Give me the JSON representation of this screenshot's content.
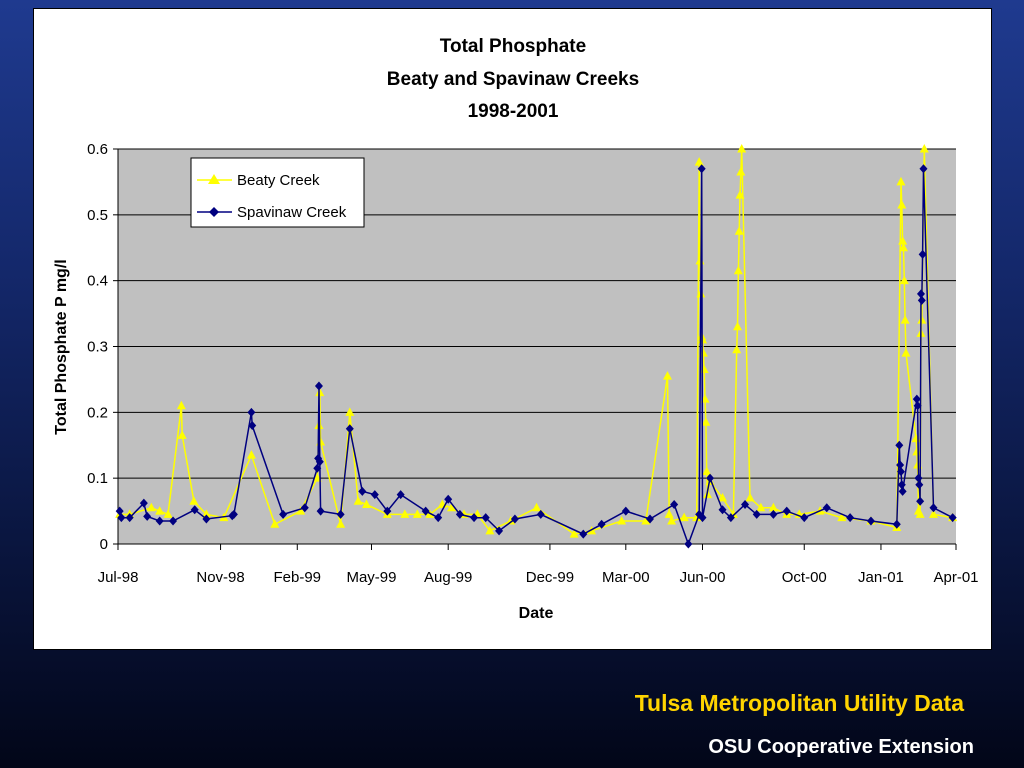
{
  "footer": {
    "primary": "Tulsa Metropolitan Utility Data",
    "secondary": "OSU Cooperative Extension"
  },
  "colors": {
    "slide_background": "#14286b",
    "plot_background": "#c0c0c0",
    "beaty": "#ffff00",
    "spavinaw": "#000080",
    "footer_primary": "#ffd400"
  },
  "chart_data": {
    "type": "line",
    "title": [
      "Total Phosphate",
      "Beaty and Spavinaw Creeks",
      "1998-2001"
    ],
    "xlabel": "Date",
    "ylabel": "Total Phosphate  P  mg/l",
    "x_axis": {
      "type": "date",
      "range": [
        "1998-07-01",
        "2001-04-01"
      ],
      "tick_labels": [
        {
          "date": "1998-07-01",
          "label": "Jul-98"
        },
        {
          "date": "1998-11-01",
          "label": "Nov-98"
        },
        {
          "date": "1999-02-01",
          "label": "Feb-99"
        },
        {
          "date": "1999-05-01",
          "label": "May-99"
        },
        {
          "date": "1999-08-01",
          "label": "Aug-99"
        },
        {
          "date": "1999-12-01",
          "label": "Dec-99"
        },
        {
          "date": "2000-03-01",
          "label": "Mar-00"
        },
        {
          "date": "2000-06-01",
          "label": "Jun-00"
        },
        {
          "date": "2000-10-01",
          "label": "Oct-00"
        },
        {
          "date": "2001-01-01",
          "label": "Jan-01"
        },
        {
          "date": "2001-04-01",
          "label": "Apr-01"
        }
      ]
    },
    "ylim": [
      0,
      0.6
    ],
    "y_ticks": [
      {
        "value": 0,
        "label": "0"
      },
      {
        "value": 0.1,
        "label": "0.1"
      },
      {
        "value": 0.2,
        "label": "0.2"
      },
      {
        "value": 0.3,
        "label": "0.3"
      },
      {
        "value": 0.4,
        "label": "0.4"
      },
      {
        "value": 0.5,
        "label": "0.5"
      },
      {
        "value": 0.6,
        "label": "0.6"
      }
    ],
    "grid": true,
    "legend_position": "top-left",
    "series": [
      {
        "name": "Beaty Creek",
        "color": "#ffff00",
        "marker": "triangle",
        "points": [
          [
            "1998-07-03",
            0.045
          ],
          [
            "1998-07-15",
            0.045
          ],
          [
            "1998-08-10",
            0.055
          ],
          [
            "1998-08-20",
            0.05
          ],
          [
            "1998-08-30",
            0.045
          ],
          [
            "1998-09-15",
            0.21
          ],
          [
            "1998-09-16",
            0.165
          ],
          [
            "1998-09-30",
            0.065
          ],
          [
            "1998-10-15",
            0.045
          ],
          [
            "1998-11-05",
            0.04
          ],
          [
            "1998-12-08",
            0.135
          ],
          [
            "1999-01-05",
            0.03
          ],
          [
            "1999-02-05",
            0.05
          ],
          [
            "1999-02-25",
            0.1
          ],
          [
            "1999-02-27",
            0.18
          ],
          [
            "1999-02-28",
            0.23
          ],
          [
            "1999-03-01",
            0.155
          ],
          [
            "1999-03-25",
            0.03
          ],
          [
            "1999-04-05",
            0.2
          ],
          [
            "1999-04-15",
            0.065
          ],
          [
            "1999-04-25",
            0.06
          ],
          [
            "1999-05-20",
            0.045
          ],
          [
            "1999-06-10",
            0.045
          ],
          [
            "1999-06-25",
            0.045
          ],
          [
            "1999-07-10",
            0.045
          ],
          [
            "1999-07-25",
            0.06
          ],
          [
            "1999-08-05",
            0.055
          ],
          [
            "1999-08-20",
            0.045
          ],
          [
            "1999-09-05",
            0.045
          ],
          [
            "1999-09-20",
            0.02
          ],
          [
            "1999-10-15",
            0.035
          ],
          [
            "1999-11-15",
            0.055
          ],
          [
            "1999-12-30",
            0.015
          ],
          [
            "2000-01-20",
            0.02
          ],
          [
            "2000-02-25",
            0.035
          ],
          [
            "2000-03-25",
            0.035
          ],
          [
            "2000-04-20",
            0.255
          ],
          [
            "2000-04-22",
            0.045
          ],
          [
            "2000-04-25",
            0.035
          ],
          [
            "2000-05-10",
            0.04
          ],
          [
            "2000-05-25",
            0.04
          ],
          [
            "2000-05-28",
            0.58
          ],
          [
            "2000-05-29",
            0.43
          ],
          [
            "2000-05-30",
            0.38
          ],
          [
            "2000-05-31",
            0.315
          ],
          [
            "2000-06-01",
            0.31
          ],
          [
            "2000-06-02",
            0.29
          ],
          [
            "2000-06-03",
            0.265
          ],
          [
            "2000-06-04",
            0.22
          ],
          [
            "2000-06-05",
            0.185
          ],
          [
            "2000-06-06",
            0.11
          ],
          [
            "2000-06-07",
            0.075
          ],
          [
            "2000-06-10",
            0.095
          ],
          [
            "2000-06-25",
            0.07
          ],
          [
            "2000-07-08",
            0.045
          ],
          [
            "2000-07-12",
            0.295
          ],
          [
            "2000-07-13",
            0.33
          ],
          [
            "2000-07-14",
            0.415
          ],
          [
            "2000-07-15",
            0.475
          ],
          [
            "2000-07-16",
            0.53
          ],
          [
            "2000-07-17",
            0.565
          ],
          [
            "2000-07-18",
            0.61
          ],
          [
            "2000-07-28",
            0.07
          ],
          [
            "2000-08-10",
            0.055
          ],
          [
            "2000-08-25",
            0.055
          ],
          [
            "2000-09-10",
            0.045
          ],
          [
            "2000-09-25",
            0.045
          ],
          [
            "2000-10-20",
            0.05
          ],
          [
            "2000-11-15",
            0.04
          ],
          [
            "2000-12-20",
            0.035
          ],
          [
            "2001-01-20",
            0.025
          ],
          [
            "2001-01-25",
            0.55
          ],
          [
            "2001-01-26",
            0.515
          ],
          [
            "2001-01-27",
            0.46
          ],
          [
            "2001-01-28",
            0.45
          ],
          [
            "2001-01-29",
            0.4
          ],
          [
            "2001-01-30",
            0.34
          ],
          [
            "2001-01-31",
            0.29
          ],
          [
            "2001-02-12",
            0.16
          ],
          [
            "2001-02-13",
            0.14
          ],
          [
            "2001-02-14",
            0.12
          ],
          [
            "2001-02-15",
            0.05
          ],
          [
            "2001-02-17",
            0.045
          ],
          [
            "2001-02-18",
            0.32
          ],
          [
            "2001-02-19",
            0.34
          ],
          [
            "2001-02-22",
            0.61
          ],
          [
            "2001-03-05",
            0.045
          ],
          [
            "2001-03-28",
            0.04
          ]
        ]
      },
      {
        "name": "Spavinaw Creek",
        "color": "#000080",
        "marker": "diamond",
        "points": [
          [
            "1998-07-03",
            0.05
          ],
          [
            "1998-07-05",
            0.04
          ],
          [
            "1998-07-15",
            0.04
          ],
          [
            "1998-08-01",
            0.062
          ],
          [
            "1998-08-05",
            0.042
          ],
          [
            "1998-08-20",
            0.035
          ],
          [
            "1998-09-05",
            0.035
          ],
          [
            "1998-10-01",
            0.052
          ],
          [
            "1998-10-15",
            0.038
          ],
          [
            "1998-11-15",
            0.043
          ],
          [
            "1998-11-17",
            0.045
          ],
          [
            "1998-12-08",
            0.2
          ],
          [
            "1998-12-09",
            0.18
          ],
          [
            "1999-01-15",
            0.045
          ],
          [
            "1999-02-10",
            0.055
          ],
          [
            "1999-02-25",
            0.115
          ],
          [
            "1999-02-26",
            0.13
          ],
          [
            "1999-02-27",
            0.24
          ],
          [
            "1999-02-28",
            0.125
          ],
          [
            "1999-03-01",
            0.05
          ],
          [
            "1999-03-25",
            0.045
          ],
          [
            "1999-04-05",
            0.175
          ],
          [
            "1999-04-20",
            0.08
          ],
          [
            "1999-05-05",
            0.075
          ],
          [
            "1999-05-20",
            0.05
          ],
          [
            "1999-06-05",
            0.075
          ],
          [
            "1999-07-05",
            0.05
          ],
          [
            "1999-07-20",
            0.04
          ],
          [
            "1999-08-01",
            0.068
          ],
          [
            "1999-08-15",
            0.045
          ],
          [
            "1999-09-01",
            0.04
          ],
          [
            "1999-09-15",
            0.04
          ],
          [
            "1999-10-01",
            0.02
          ],
          [
            "1999-10-20",
            0.038
          ],
          [
            "1999-11-20",
            0.045
          ],
          [
            "2000-01-10",
            0.015
          ],
          [
            "2000-02-01",
            0.03
          ],
          [
            "2000-03-01",
            0.05
          ],
          [
            "2000-03-30",
            0.038
          ],
          [
            "2000-04-28",
            0.06
          ],
          [
            "2000-05-15",
            0.0
          ],
          [
            "2000-05-28",
            0.045
          ],
          [
            "2000-05-31",
            0.57
          ],
          [
            "2000-06-01",
            0.04
          ],
          [
            "2000-06-10",
            0.1
          ],
          [
            "2000-06-25",
            0.052
          ],
          [
            "2000-07-05",
            0.04
          ],
          [
            "2000-07-22",
            0.06
          ],
          [
            "2000-08-05",
            0.045
          ],
          [
            "2000-08-25",
            0.045
          ],
          [
            "2000-09-10",
            0.05
          ],
          [
            "2000-10-01",
            0.04
          ],
          [
            "2000-10-28",
            0.055
          ],
          [
            "2000-11-25",
            0.04
          ],
          [
            "2000-12-20",
            0.035
          ],
          [
            "2001-01-20",
            0.03
          ],
          [
            "2001-01-23",
            0.15
          ],
          [
            "2001-01-24",
            0.12
          ],
          [
            "2001-01-25",
            0.11
          ],
          [
            "2001-01-26",
            0.09
          ],
          [
            "2001-01-27",
            0.08
          ],
          [
            "2001-02-13",
            0.22
          ],
          [
            "2001-02-14",
            0.21
          ],
          [
            "2001-02-15",
            0.1
          ],
          [
            "2001-02-16",
            0.09
          ],
          [
            "2001-02-17",
            0.065
          ],
          [
            "2001-02-18",
            0.38
          ],
          [
            "2001-02-19",
            0.37
          ],
          [
            "2001-02-20",
            0.44
          ],
          [
            "2001-02-21",
            0.57
          ],
          [
            "2001-03-05",
            0.055
          ],
          [
            "2001-03-28",
            0.04
          ]
        ]
      }
    ]
  }
}
